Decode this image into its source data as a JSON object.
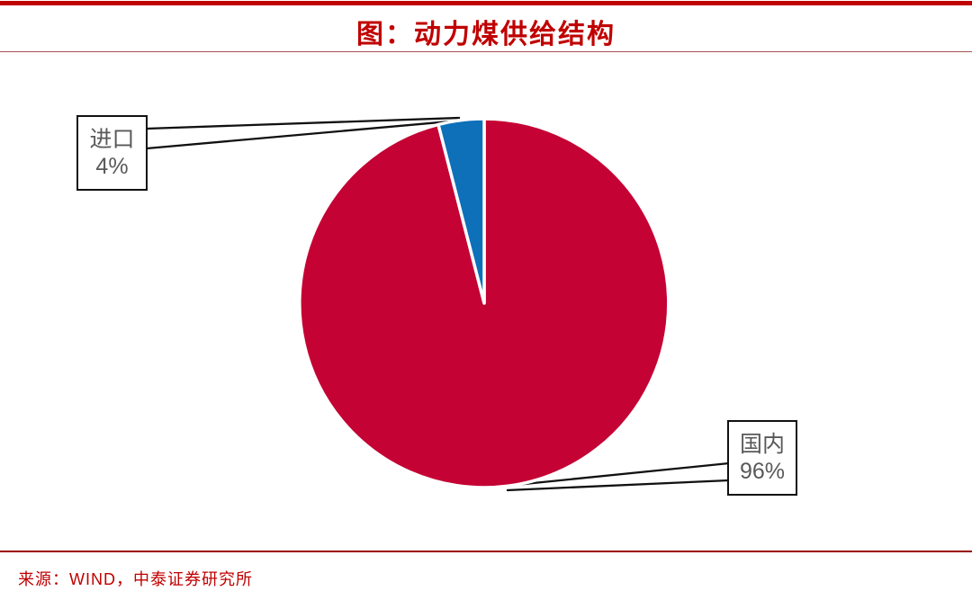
{
  "header": {
    "title": "图：动力煤供给结构"
  },
  "chart_data": {
    "type": "pie",
    "title": "动力煤供给结构",
    "start_angle_deg": 0,
    "direction": "clockwise",
    "slices": [
      {
        "label": "国内",
        "value_pct": 96,
        "display": "96%",
        "color": "#c40234"
      },
      {
        "label": "进口",
        "value_pct": 4,
        "display": "4%",
        "color": "#0d70b8"
      }
    ],
    "legend": "none",
    "data_labels": "callout-boxes-with-leader-lines"
  },
  "footer": {
    "source": "来源：WIND，中泰证券研究所"
  },
  "colors": {
    "accent_red": "#c00000",
    "pie_domestic": "#c40234",
    "pie_import": "#0d70b8",
    "callout_text": "#595959",
    "callout_border": "#111111",
    "separator_dark_red": "#990000",
    "slice_gap_white": "#ffffff"
  }
}
